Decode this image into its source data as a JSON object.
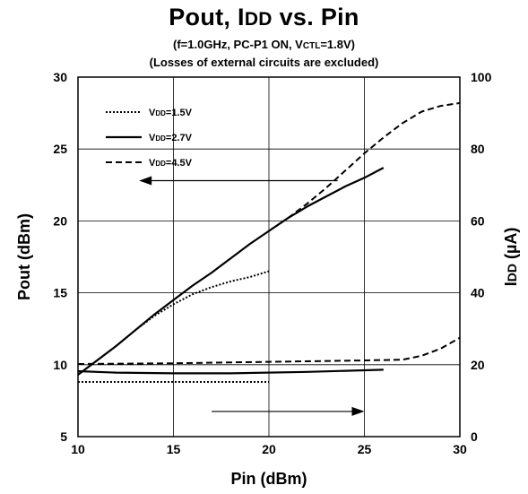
{
  "title": {
    "pre1": "Pout, I",
    "sub1": "DD",
    "post1": " vs. Pin"
  },
  "subtitle1": {
    "pre": "(f=1.0GHz, PC-P1 ON, V",
    "sub": "CTL",
    "post": "=1.8V)"
  },
  "subtitle2": "(Losses of external circuits are excluded)",
  "chart_data": {
    "type": "line",
    "xlabel": "Pin (dBm)",
    "ylabel": "Pout (dBm)",
    "y2label": {
      "pre": "I",
      "sub": "DD",
      "post": " (µA)"
    },
    "xlim": [
      10,
      30
    ],
    "ylim": [
      5,
      30
    ],
    "y2lim": [
      0,
      100
    ],
    "x_ticks": [
      10,
      15,
      20,
      25,
      30
    ],
    "y_ticks": [
      5,
      10,
      15,
      20,
      25,
      30
    ],
    "y2_ticks": [
      0,
      20,
      40,
      60,
      80,
      100
    ],
    "grid": true,
    "legend_position": "top-left",
    "series": [
      {
        "name": "VDD=1.5V",
        "legend": {
          "pre": "V",
          "sub": "DD",
          "post": "=1.5V"
        },
        "dash": "dotted",
        "pout": [
          [
            10,
            9.3
          ],
          [
            11,
            10.3
          ],
          [
            12,
            11.3
          ],
          [
            13,
            12.4
          ],
          [
            14,
            13.4
          ],
          [
            15,
            14.2
          ],
          [
            16,
            14.9
          ],
          [
            17,
            15.4
          ],
          [
            18,
            15.8
          ],
          [
            19,
            16.1
          ],
          [
            20,
            16.5
          ]
        ],
        "idd": [
          [
            10,
            15.2
          ],
          [
            15,
            15.2
          ],
          [
            20,
            15.2
          ]
        ]
      },
      {
        "name": "VDD=2.7V",
        "legend": {
          "pre": "V",
          "sub": "DD",
          "post": "=2.7V"
        },
        "dash": "solid",
        "pout": [
          [
            10,
            9.3
          ],
          [
            11,
            10.3
          ],
          [
            12,
            11.3
          ],
          [
            13,
            12.4
          ],
          [
            14,
            13.5
          ],
          [
            15,
            14.5
          ],
          [
            16,
            15.5
          ],
          [
            17,
            16.4
          ],
          [
            18,
            17.4
          ],
          [
            19,
            18.4
          ],
          [
            20,
            19.3
          ],
          [
            21,
            20.2
          ],
          [
            22,
            21.0
          ],
          [
            23,
            21.7
          ],
          [
            24,
            22.4
          ],
          [
            25,
            23.0
          ],
          [
            26,
            23.7
          ]
        ],
        "idd": [
          [
            10,
            18.2
          ],
          [
            12,
            17.8
          ],
          [
            15,
            17.6
          ],
          [
            18,
            17.6
          ],
          [
            22,
            18.0
          ],
          [
            26,
            18.6
          ]
        ]
      },
      {
        "name": "VDD=4.5V",
        "legend": {
          "pre": "V",
          "sub": "DD",
          "post": "=4.5V"
        },
        "dash": "dashed",
        "pout": [
          [
            21,
            20.2
          ],
          [
            22,
            21.2
          ],
          [
            23,
            22.3
          ],
          [
            24,
            23.5
          ],
          [
            25,
            24.7
          ],
          [
            26,
            25.8
          ],
          [
            27,
            26.8
          ],
          [
            28,
            27.6
          ],
          [
            29,
            28.0
          ],
          [
            30,
            28.2
          ]
        ],
        "idd": [
          [
            10,
            20.2
          ],
          [
            15,
            20.4
          ],
          [
            20,
            20.8
          ],
          [
            25,
            21.2
          ],
          [
            27,
            21.4
          ],
          [
            28,
            22.5
          ],
          [
            29,
            24.5
          ],
          [
            30,
            27.5
          ]
        ]
      }
    ],
    "annotations": [
      {
        "type": "arrow",
        "direction": "left",
        "axis": "Pout",
        "x_from": 23.6,
        "x_to": 13.2,
        "y": 22.8
      },
      {
        "type": "arrow",
        "direction": "right",
        "axis": "IDD",
        "x_from": 17.0,
        "x_to": 25.0,
        "y": 7.0
      }
    ]
  }
}
